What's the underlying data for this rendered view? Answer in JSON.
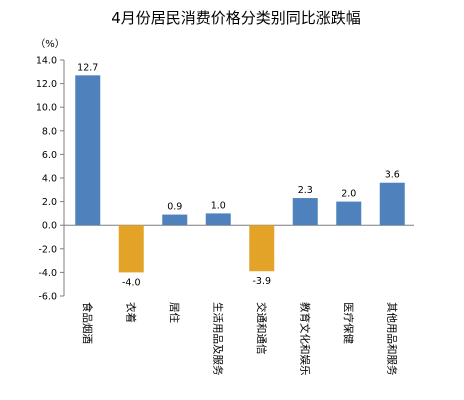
{
  "chart_data": {
    "type": "bar",
    "title": "4月份居民消费价格分类别同比涨跌幅",
    "unit_label": "（%）",
    "categories": [
      "食品烟酒",
      "衣着",
      "居住",
      "生活用品及服务",
      "交通和通信",
      "教育文化和娱乐",
      "医疗保健",
      "其他用品和服务"
    ],
    "values": [
      12.7,
      -4.0,
      0.9,
      1.0,
      -3.9,
      2.3,
      2.0,
      3.6
    ],
    "value_labels": [
      "12.7",
      "-4.0",
      "0.9",
      "1.0",
      "-3.9",
      "2.3",
      "2.0",
      "3.6"
    ],
    "ylim": [
      -6.0,
      14.0
    ],
    "yticks": [
      "14.0",
      "12.0",
      "10.0",
      "8.0",
      "6.0",
      "4.0",
      "2.0",
      "0.0",
      "-2.0",
      "-4.0",
      "-6.0"
    ],
    "ytick_values": [
      14,
      12,
      10,
      8,
      6,
      4,
      2,
      0,
      -2,
      -4,
      -6
    ],
    "grid": false,
    "legend": "none",
    "colors": {
      "positive": "#4f81bd",
      "negative": "#e3a329",
      "axis": "#7f7f7f"
    }
  }
}
